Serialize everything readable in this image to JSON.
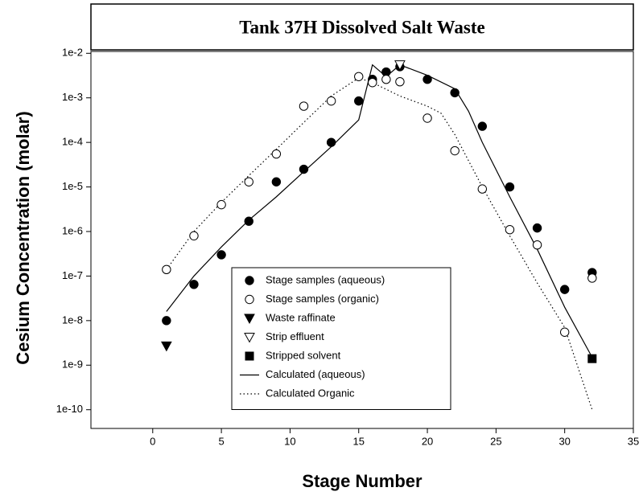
{
  "chart_data": {
    "type": "scatter",
    "title": "Tank 37H Dissolved Salt Waste",
    "x_label": "Stage Number",
    "y_label": "Cesium Concentration (molar)",
    "ylog": true,
    "xlim": [
      -4.5,
      35
    ],
    "ylim": [
      3.8e-11,
      0.011
    ],
    "xticks": [
      0,
      5,
      10,
      15,
      20,
      25,
      30,
      35
    ],
    "yticks": [
      {
        "value": 1e-10,
        "label": "1e-10"
      },
      {
        "value": 1e-09,
        "label": "1e-9"
      },
      {
        "value": 1e-08,
        "label": "1e-8"
      },
      {
        "value": 1e-07,
        "label": "1e-7"
      },
      {
        "value": 1e-06,
        "label": "1e-6"
      },
      {
        "value": 1e-05,
        "label": "1e-5"
      },
      {
        "value": 0.0001,
        "label": "1e-4"
      },
      {
        "value": 0.001,
        "label": "1e-3"
      },
      {
        "value": 0.01,
        "label": "1e-2"
      }
    ],
    "legend": "lower center",
    "series": [
      {
        "name": "Stage samples (aqueous)",
        "color": "#000000",
        "mode": "markers",
        "marker": "filled-circle",
        "x": [
          1,
          3,
          5,
          7,
          9,
          11,
          13,
          15,
          16,
          17,
          18,
          20,
          22,
          24,
          26,
          28,
          30,
          32
        ],
        "values": [
          1e-08,
          6.5e-08,
          3e-07,
          1.7e-06,
          1.3e-05,
          2.5e-05,
          0.0001,
          0.00085,
          0.0026,
          0.0038,
          0.005,
          0.0026,
          0.0013,
          0.00023,
          1e-05,
          1.2e-06,
          5e-08,
          1.2e-07
        ]
      },
      {
        "name": "Stage samples (organic)",
        "color": "#000000",
        "mode": "markers",
        "marker": "open-circle",
        "x": [
          1,
          3,
          5,
          7,
          9,
          11,
          13,
          15,
          16,
          17,
          18,
          20,
          22,
          24,
          26,
          28,
          30,
          32
        ],
        "values": [
          1.4e-07,
          8e-07,
          4e-06,
          1.3e-05,
          5.5e-05,
          0.00065,
          0.00085,
          0.003,
          0.0022,
          0.0026,
          0.0023,
          0.00035,
          6.5e-05,
          9e-06,
          1.1e-06,
          5e-07,
          5.5e-09,
          9e-08
        ]
      },
      {
        "name": "Waste raffinate",
        "color": "#000000",
        "mode": "markers",
        "marker": "filled-triangle-down",
        "x": [
          1
        ],
        "values": [
          2.7e-09
        ]
      },
      {
        "name": "Strip effluent",
        "color": "#000000",
        "mode": "markers",
        "marker": "open-triangle-down",
        "x": [
          18
        ],
        "values": [
          0.0055
        ]
      },
      {
        "name": "Stripped solvent",
        "color": "#000000",
        "mode": "markers",
        "marker": "filled-square",
        "x": [
          32
        ],
        "values": [
          1.4e-09
        ]
      },
      {
        "name": "Calculated (aqueous)",
        "color": "#000000",
        "mode": "line",
        "dash": "solid",
        "x": [
          1,
          3,
          5,
          7,
          9,
          11,
          13,
          15,
          16,
          17,
          18,
          20,
          22,
          23,
          24,
          26,
          28,
          30,
          32
        ],
        "values": [
          1.6e-08,
          1e-07,
          4.5e-07,
          1.8e-06,
          6e-06,
          2.2e-05,
          8e-05,
          0.00032,
          0.0055,
          0.003,
          0.0055,
          0.0032,
          0.0016,
          0.0005,
          0.0001,
          6e-06,
          4e-07,
          2e-08,
          1.5e-09
        ]
      },
      {
        "name": "Calculated Organic",
        "color": "#000000",
        "mode": "line",
        "dash": "dotted",
        "x": [
          1,
          3,
          5,
          7,
          9,
          11,
          13,
          15,
          16,
          18,
          20,
          21,
          22,
          24,
          26,
          28,
          30,
          32
        ],
        "values": [
          1.4e-07,
          1e-06,
          4.5e-06,
          1.8e-05,
          7e-05,
          0.00028,
          0.0011,
          0.0028,
          0.0022,
          0.0011,
          0.00065,
          0.00045,
          0.00015,
          1e-05,
          8e-07,
          7e-08,
          7e-09,
          1e-10
        ]
      }
    ]
  }
}
